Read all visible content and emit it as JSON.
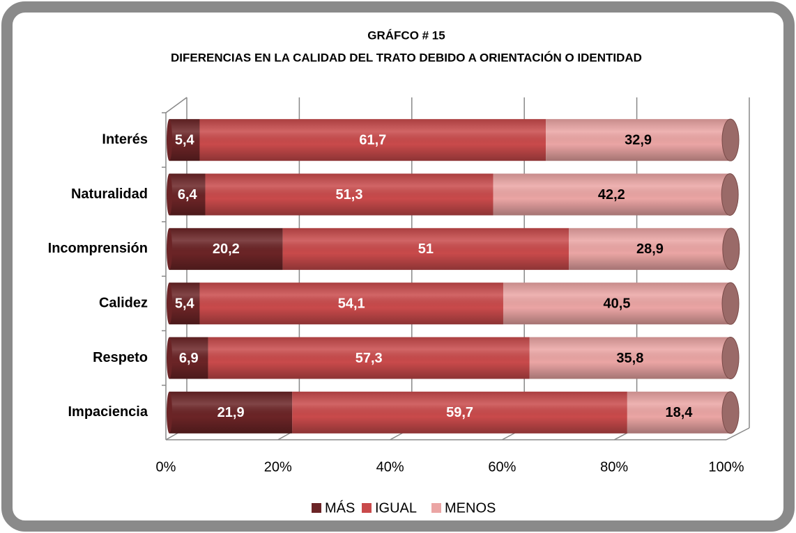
{
  "chart_data": {
    "type": "stacked_barh",
    "title": "GRÁFCO # 15",
    "subtitle": "DIFERENCIAS EN LA CALIDAD DEL TRATO DEBIDO A ORIENTACIÓN O IDENTIDAD",
    "categories": [
      "Interés",
      "Naturalidad",
      "Incomprensión",
      "Calidez",
      "Respeto",
      "Impaciencia"
    ],
    "series": [
      {
        "name": "MÁS",
        "color": "#6b2426",
        "values": [
          5.4,
          6.4,
          20.2,
          5.4,
          6.9,
          21.9
        ],
        "value_labels": [
          "5,4",
          "6,4",
          "20,2",
          "5,4",
          "6,9",
          "21,9"
        ]
      },
      {
        "name": "IGUAL",
        "color": "#c94a4b",
        "values": [
          61.7,
          51.3,
          51,
          54.1,
          57.3,
          59.7
        ],
        "value_labels": [
          "61,7",
          "51,3",
          "51",
          "54,1",
          "57,3",
          "59,7"
        ]
      },
      {
        "name": "MENOS",
        "color": "#eba5a4",
        "values": [
          32.9,
          42.2,
          28.9,
          40.5,
          35.8,
          18.4
        ],
        "value_labels": [
          "32,9",
          "42,2",
          "28,9",
          "40,5",
          "35,8",
          "18,4"
        ]
      }
    ],
    "xlim": [
      0,
      100
    ],
    "xticks": [
      {
        "value": 0,
        "label": "0%"
      },
      {
        "value": 20,
        "label": "20%"
      },
      {
        "value": 40,
        "label": "40%"
      },
      {
        "value": 60,
        "label": "60%"
      },
      {
        "value": 80,
        "label": "80%"
      },
      {
        "value": 100,
        "label": "100%"
      }
    ],
    "grid": true,
    "legend": "bottom"
  }
}
